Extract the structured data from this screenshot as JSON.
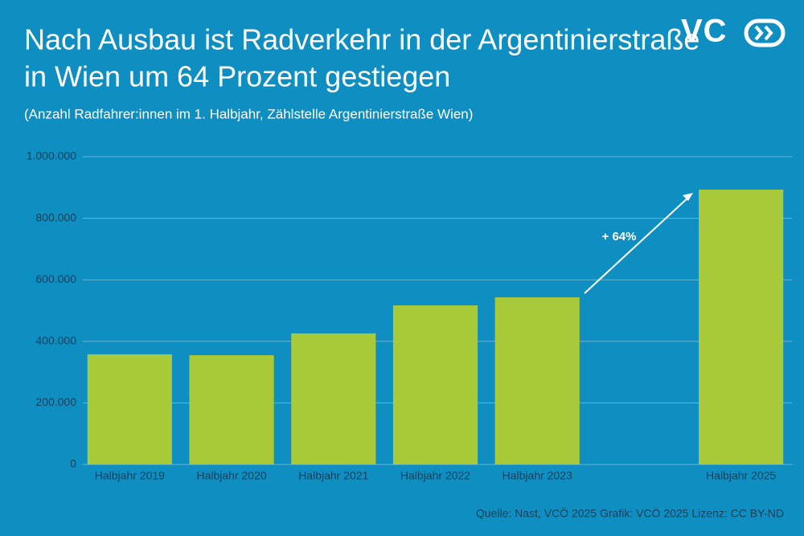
{
  "chart_data": {
    "type": "bar",
    "title": [
      "Nach Ausbau ist Radverkehr in der Argentinierstraße",
      "in Wien um 64 Prozent gestiegen"
    ],
    "subtitle": "(Anzahl Radfahrer:innen im 1. Halbjahr, Zählstelle Argentinierstraße Wien)",
    "logo": "VC",
    "categories": [
      "Halbjahr 2019",
      "Halbjahr 2020",
      "Halbjahr 2021",
      "Halbjahr 2022",
      "Halbjahr 2023",
      null,
      "Halbjahr 2025"
    ],
    "values": [
      358000,
      355000,
      426000,
      517000,
      543000,
      null,
      893000
    ],
    "color": "#a8c93a",
    "ylim": [
      0,
      1000000
    ],
    "yticks": [
      0,
      {
        "value": 200000,
        "label": "200.000"
      },
      {
        "value": 400000,
        "label": "400.000"
      },
      {
        "value": 600000,
        "label": "600.000"
      },
      {
        "value": 800000,
        "label": "800.000"
      },
      {
        "value": 1000000,
        "label": "1.000.000"
      }
    ],
    "grid": true,
    "annotation": "+ 64%",
    "source": "Quelle: Nast, VCÖ 2025 Grafik: VCÖ 2025 Lizenz: CC BY-ND"
  }
}
